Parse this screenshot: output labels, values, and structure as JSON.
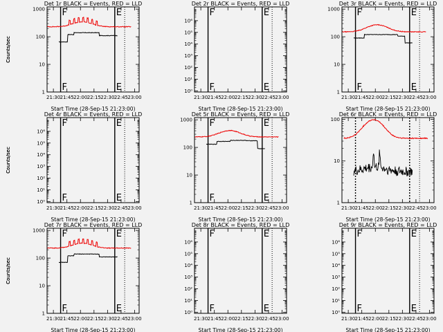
{
  "figure": {
    "background": "#f2f2f2",
    "event_color": "#000000",
    "lld_color": "#ee0000"
  },
  "chart_data": [
    {
      "type": "line",
      "title": "Det 1r BLACK = Events, RED = LLD",
      "xlabel": "Start Time (28-Sep-15 21:23:00)",
      "ylabel": "Counts/sec",
      "ylog": true,
      "ylim": [
        1,
        1200
      ],
      "ytick_labels": [
        "1",
        "10",
        "100",
        "1000"
      ],
      "xtick_labels": [
        "21:30",
        "21:45",
        "22:00",
        "22:15",
        "22:30",
        "22:45",
        "23:00"
      ],
      "markers": [
        {
          "label": "F",
          "time": "21:38"
        },
        {
          "label": "E",
          "time": "22:38"
        }
      ],
      "dotted_line": "22:49",
      "series": [
        {
          "name": "Events",
          "color": "#000000",
          "shape": "flat",
          "level": 65,
          "x": [
            "21:36",
            "22:41"
          ],
          "seg": [
            [
              "21:46",
              120,
              0.15
            ],
            [
              "21:53",
              140,
              0.15
            ],
            [
              "22:20",
              140,
              0.15
            ],
            [
              "22:21",
              110,
              0.1
            ],
            [
              "22:33",
              110,
              0.08
            ]
          ],
          "bump": null,
          "spikes": []
        },
        {
          "name": "LLD",
          "color": "#ee0000",
          "shape": "smooth",
          "level": 230,
          "x": [
            "21:23",
            "22:56"
          ],
          "seg": [],
          "bump": {
            "center": "22:02",
            "width": 14,
            "amp": 1.5
          },
          "spikes": [
            "21:48",
            "21:53",
            "21:58",
            "22:03",
            "22:08",
            "22:13",
            "22:18"
          ]
        }
      ]
    },
    {
      "type": "line",
      "title": "Det 2r BLACK = Events, RED = LLD",
      "xlabel": "Start Time (28-Sep-15 21:23:00)",
      "ylabel": "Counts/sec",
      "ylog": true,
      "ylim": [
        0.8,
        15000000
      ],
      "ytick_labels": [
        "10^0",
        "10^1",
        "10^2",
        "10^3",
        "10^4",
        "10^5",
        "10^6"
      ],
      "xtick_labels": [
        "21:30",
        "21:45",
        "22:00",
        "22:15",
        "22:30",
        "22:45",
        "23:00"
      ],
      "markers": [
        {
          "label": "F",
          "time": "21:38"
        },
        {
          "label": "E",
          "time": "22:38"
        }
      ],
      "dotted_line": "22:49",
      "series": []
    },
    {
      "type": "line",
      "title": "Det 3r BLACK = Events, RED = LLD",
      "xlabel": "Start Time (28-Sep-15 21:23:00)",
      "ylabel": "Counts/sec",
      "ylog": true,
      "ylim": [
        1,
        1200
      ],
      "ytick_labels": [
        "1",
        "10",
        "100",
        "1000"
      ],
      "xtick_labels": [
        "21:30",
        "21:45",
        "22:00",
        "22:15",
        "22:30",
        "22:45",
        "23:00"
      ],
      "markers": [
        {
          "label": "F",
          "time": "21:38"
        },
        {
          "label": "E",
          "time": "22:38"
        }
      ],
      "dotted_line": "22:49",
      "series": [
        {
          "name": "Events",
          "color": "#000000",
          "shape": "flat",
          "level": 90,
          "x": [
            "21:36",
            "22:41"
          ],
          "seg": [
            [
              "21:48",
              120,
              0.08
            ],
            [
              "22:10",
              120,
              0.06
            ],
            [
              "22:25",
              105,
              0.05
            ],
            [
              "22:33",
              60,
              0.05
            ]
          ],
          "bump": null,
          "spikes": []
        },
        {
          "name": "LLD",
          "color": "#ee0000",
          "shape": "smooth",
          "level": 150,
          "x": [
            "21:23",
            "22:56"
          ],
          "seg": [],
          "bump": {
            "center": "22:02",
            "width": 15,
            "amp": 1.8
          },
          "spikes": []
        }
      ]
    },
    {
      "type": "line",
      "title": "Det 4r BLACK = Events, RED = LLD",
      "xlabel": "Start Time (28-Sep-15 21:23:00)",
      "ylabel": "Counts/sec",
      "ylog": true,
      "ylim": [
        0.8,
        15000000
      ],
      "ytick_labels": [
        "10^0",
        "10^1",
        "10^2",
        "10^3",
        "10^4",
        "10^5",
        "10^6"
      ],
      "xtick_labels": [
        "21:30",
        "21:45",
        "22:00",
        "22:15",
        "22:30",
        "22:45",
        "23:00"
      ],
      "markers": [
        {
          "label": "F",
          "time": "21:38"
        },
        {
          "label": "E",
          "time": "22:38"
        }
      ],
      "dotted_line": "22:49",
      "series": []
    },
    {
      "type": "line",
      "title": "Det 5r BLACK = Events, RED = LLD",
      "xlabel": "Start Time (28-Sep-15 21:23:00)",
      "ylabel": "Counts/sec",
      "ylog": true,
      "ylim": [
        1,
        1200
      ],
      "ytick_labels": [
        "1",
        "10",
        "100",
        "1000"
      ],
      "xtick_labels": [
        "21:30",
        "21:45",
        "22:00",
        "22:15",
        "22:30",
        "22:45",
        "23:00"
      ],
      "markers": [
        {
          "label": "F",
          "time": "21:38"
        },
        {
          "label": "E",
          "time": "22:38"
        }
      ],
      "dotted_line": "22:49",
      "series": [
        {
          "name": "Events",
          "color": "#000000",
          "shape": "flat",
          "level": 130,
          "x": [
            "21:36",
            "22:41"
          ],
          "seg": [
            [
              "21:48",
              165,
              0.05
            ],
            [
              "22:03",
              180,
              0.05
            ],
            [
              "22:20",
              175,
              0.05
            ],
            [
              "22:33",
              90,
              0.04
            ]
          ],
          "bump": null,
          "spikes": []
        },
        {
          "name": "LLD",
          "color": "#ee0000",
          "shape": "smooth",
          "level": 240,
          "x": [
            "21:23",
            "22:56"
          ],
          "seg": [],
          "bump": {
            "center": "22:02",
            "width": 15,
            "amp": 1.7
          },
          "spikes": []
        }
      ]
    },
    {
      "type": "line",
      "title": "Det 6r BLACK = Events, RED = LLD",
      "xlabel": "Start Time (28-Sep-15 21:23:00)",
      "ylabel": "Counts/sec",
      "ylog": true,
      "ylim": [
        1,
        110
      ],
      "ytick_labels": [
        "1",
        "10",
        "100"
      ],
      "xtick_labels": [
        "21:30",
        "21:45",
        "22:00",
        "22:15",
        "22:30",
        "22:45",
        "23:00"
      ],
      "markers": [],
      "dotted_line": "22:49",
      "series": [
        {
          "name": "Events",
          "color": "#000000",
          "shape": "noisy",
          "level": 5.5,
          "x": [
            "21:36",
            "22:41"
          ],
          "seg": [],
          "bump": {
            "center": "22:00",
            "width": 16,
            "amp": 1.3
          },
          "spikes": [
            "21:58",
            "22:05"
          ]
        },
        {
          "name": "LLD",
          "color": "#ee0000",
          "shape": "smooth",
          "level": 35,
          "x": [
            "21:25",
            "22:58"
          ],
          "seg": [],
          "bump": {
            "center": "21:58",
            "width": 14,
            "amp": 2.8
          },
          "spikes": []
        }
      ]
    },
    {
      "type": "line",
      "title": "Det 7r BLACK = Events, RED = LLD",
      "xlabel": "Start Time (28-Sep-15 21:23:00)",
      "ylabel": "Counts/sec",
      "ylog": true,
      "ylim": [
        1,
        1200
      ],
      "ytick_labels": [
        "1",
        "10",
        "100",
        "1000"
      ],
      "xtick_labels": [
        "21:30",
        "21:45",
        "22:00",
        "22:15",
        "22:30",
        "22:45",
        "23:00"
      ],
      "markers": [
        {
          "label": "F",
          "time": "21:38"
        },
        {
          "label": "E",
          "time": "22:38"
        }
      ],
      "dotted_line": "22:49",
      "series": [
        {
          "name": "Events",
          "color": "#000000",
          "shape": "flat",
          "level": 70,
          "x": [
            "21:36",
            "22:41"
          ],
          "seg": [
            [
              "21:46",
              120,
              0.15
            ],
            [
              "21:53",
              140,
              0.15
            ],
            [
              "22:20",
              140,
              0.15
            ],
            [
              "22:21",
              110,
              0.1
            ],
            [
              "22:33",
              110,
              0.08
            ]
          ],
          "bump": null,
          "spikes": []
        },
        {
          "name": "LLD",
          "color": "#ee0000",
          "shape": "smooth",
          "level": 230,
          "x": [
            "21:23",
            "22:56"
          ],
          "seg": [],
          "bump": {
            "center": "22:02",
            "width": 14,
            "amp": 1.5
          },
          "spikes": [
            "21:48",
            "21:53",
            "21:58",
            "22:03",
            "22:08",
            "22:13",
            "22:18"
          ]
        }
      ]
    },
    {
      "type": "line",
      "title": "Det 8r BLACK = Events, RED = LLD",
      "xlabel": "Start Time (28-Sep-15 21:23:00)",
      "ylabel": "Counts/sec",
      "ylog": true,
      "ylim": [
        0.8,
        15000000
      ],
      "ytick_labels": [
        "10^0",
        "10^1",
        "10^2",
        "10^3",
        "10^4",
        "10^5",
        "10^6"
      ],
      "xtick_labels": [
        "21:30",
        "21:45",
        "22:00",
        "22:15",
        "22:30",
        "22:45",
        "23:00"
      ],
      "markers": [
        {
          "label": "F",
          "time": "21:38"
        },
        {
          "label": "E",
          "time": "22:38"
        }
      ],
      "dotted_line": "22:49",
      "series": []
    },
    {
      "type": "line",
      "title": "Det 9r BLACK = Events, RED = LLD",
      "xlabel": "Start Time (28-Sep-15 21:23:00)",
      "ylabel": "Counts/sec",
      "ylog": true,
      "ylim": [
        0.8,
        15000000
      ],
      "ytick_labels": [
        "10^0",
        "10^1",
        "10^2",
        "10^3",
        "10^4",
        "10^5",
        "10^6"
      ],
      "xtick_labels": [
        "21:30",
        "21:45",
        "22:00",
        "22:15",
        "22:30",
        "22:45",
        "23:00"
      ],
      "markers": [
        {
          "label": "F",
          "time": "21:38"
        },
        {
          "label": "E",
          "time": "22:38"
        }
      ],
      "dotted_line": "22:49",
      "series": []
    }
  ]
}
